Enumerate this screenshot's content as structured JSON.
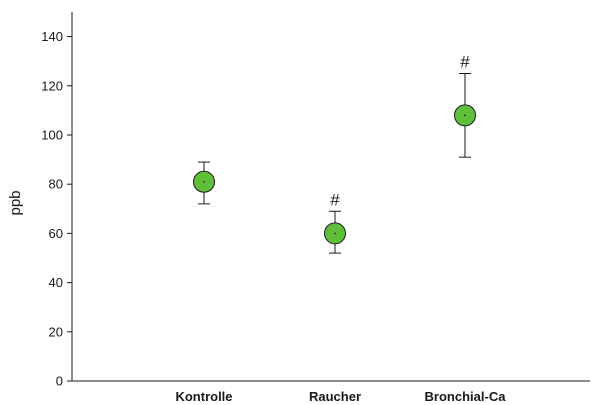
{
  "chart_data": {
    "type": "scatter",
    "title": "",
    "xlabel": "",
    "ylabel": "ppb",
    "ylim": [
      0,
      150
    ],
    "yticks": [
      0,
      20,
      40,
      60,
      80,
      100,
      120,
      140
    ],
    "grid": false,
    "categories": [
      "Kontrolle",
      "Raucher",
      "Bronchial-Ca"
    ],
    "series": [
      {
        "values": [
          81,
          60,
          108
        ],
        "error_low": [
          72,
          52,
          91
        ],
        "error_high": [
          89,
          69,
          125
        ],
        "annotations": [
          "",
          "#",
          "#"
        ]
      }
    ],
    "marker_fill": "#5fbf3a",
    "marker_edge": "#1a1a1a"
  }
}
